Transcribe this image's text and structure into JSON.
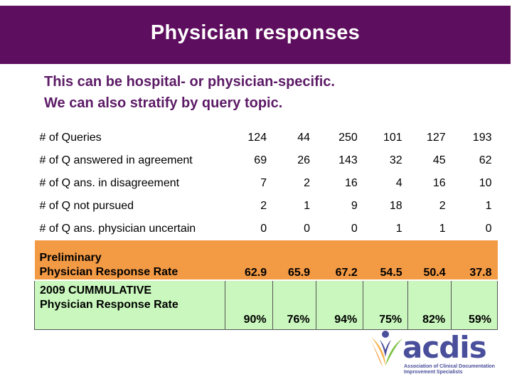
{
  "title": "Physician responses",
  "subtitle_lines": [
    "This can be hospital- or physician-specific.",
    "We can also stratify by query topic."
  ],
  "table": {
    "rows": [
      {
        "label": "# of Queries",
        "values": [
          "124",
          "44",
          "250",
          "101",
          "127",
          "193"
        ]
      },
      {
        "label": "# of Q answered in agreement",
        "values": [
          "69",
          "26",
          "143",
          "32",
          "45",
          "62"
        ]
      },
      {
        "label": "# of Q ans. in disagreement",
        "values": [
          "7",
          "2",
          "16",
          "4",
          "16",
          "10"
        ]
      },
      {
        "label": "# of Q not pursued",
        "values": [
          "2",
          "1",
          "9",
          "18",
          "2",
          "1"
        ]
      },
      {
        "label": "# of Q ans. physician uncertain",
        "values": [
          "0",
          "0",
          "0",
          "1",
          "1",
          "0"
        ]
      }
    ],
    "preliminary": {
      "label_lines": [
        "Preliminary",
        "Physician Response Rate"
      ],
      "values": [
        "62.9",
        "65.9",
        "67.2",
        "54.5",
        "50.4",
        "37.8"
      ]
    },
    "cumulative": {
      "label_lines": [
        "2009 CUMMULATIVE",
        "Physician Response Rate"
      ],
      "values": [
        "90%",
        "76%",
        "94%",
        "75%",
        "82%",
        "59%"
      ]
    }
  },
  "logo": {
    "word": "acdis",
    "tagline": "Association of Clinical Documentation Improvement Specialists"
  },
  "colors": {
    "title_bg": "#5e0e5e",
    "subtitle_text": "#5c1a66",
    "preliminary_bg": "#f39a45",
    "cumulative_bg": "#c9f7bd",
    "logo_blue": "#4a4f9b",
    "logo_orange": "#f08a1c",
    "logo_green": "#7cc242"
  }
}
